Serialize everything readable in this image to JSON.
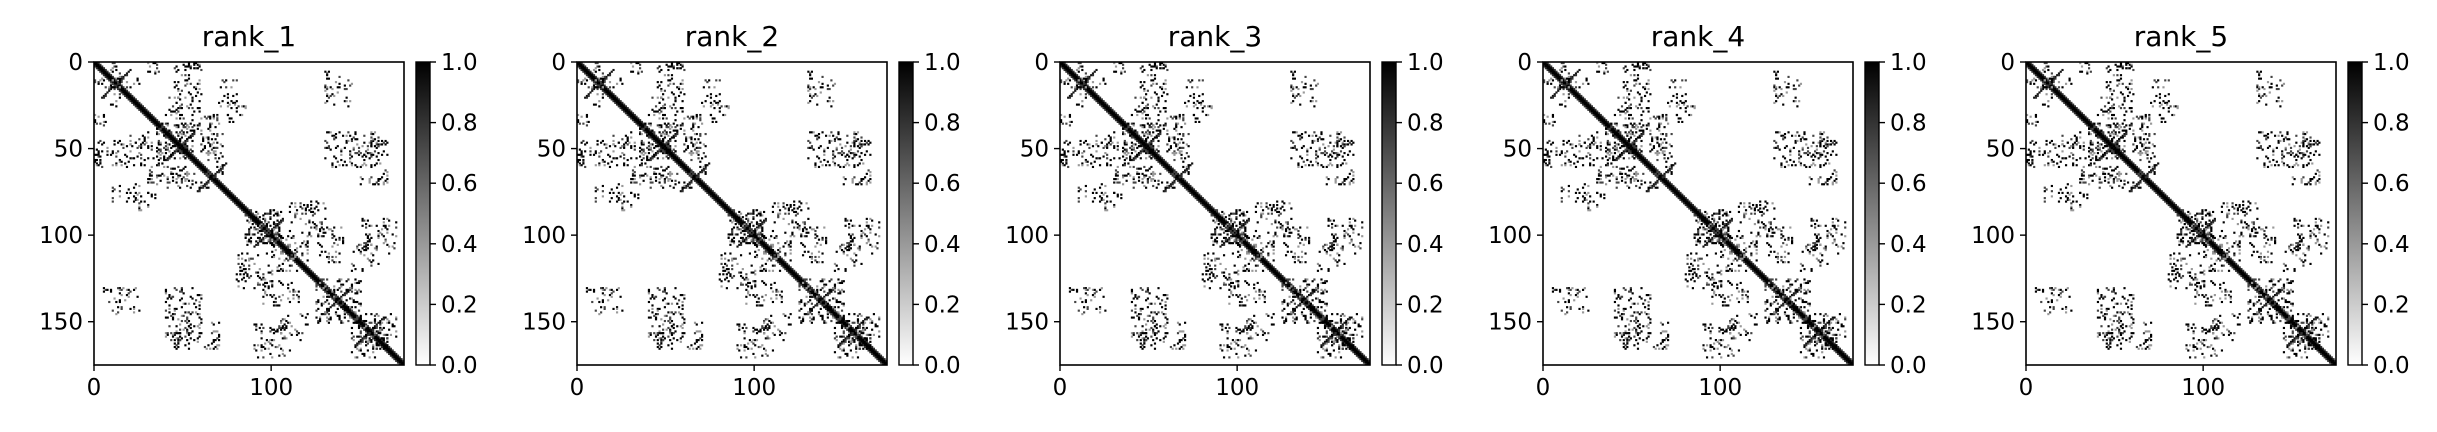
{
  "figure": {
    "background": "#ffffff"
  },
  "chart_data": [
    {
      "type": "heatmap",
      "title": "rank_1",
      "n": 175,
      "xlim": [
        0,
        175
      ],
      "ylim": [
        175,
        0
      ],
      "xticks": [
        0,
        100
      ],
      "yticks": [
        0,
        50,
        100,
        150
      ],
      "colorbar": {
        "range": [
          0.0,
          1.0
        ],
        "ticks": [
          "0.0",
          "0.2",
          "0.4",
          "0.6",
          "0.8",
          "1.0"
        ],
        "cmap": "gray_r"
      },
      "contact_regions": [
        {
          "x": [
            8,
            15
          ],
          "y": [
            0,
            25
          ]
        },
        {
          "x": [
            30,
            36
          ],
          "y": [
            0,
            8
          ]
        },
        {
          "x": [
            40,
            48
          ],
          "y": [
            20,
            32
          ]
        },
        {
          "x": [
            60,
            70
          ],
          "y": [
            30,
            42
          ]
        },
        {
          "x": [
            75,
            85
          ],
          "y": [
            22,
            35
          ]
        },
        {
          "x": [
            0,
            40
          ],
          "y": [
            45,
            60
          ]
        },
        {
          "x": [
            35,
            55
          ],
          "y": [
            35,
            55
          ]
        },
        {
          "x": [
            10,
            30
          ],
          "y": [
            70,
            80
          ]
        },
        {
          "x": [
            40,
            65
          ],
          "y": [
            60,
            72
          ]
        },
        {
          "x": [
            85,
            105
          ],
          "y": [
            85,
            105
          ]
        },
        {
          "x": [
            130,
            145
          ],
          "y": [
            40,
            60
          ]
        },
        {
          "x": [
            150,
            165
          ],
          "y": [
            45,
            70
          ]
        },
        {
          "x": [
            105,
            120
          ],
          "y": [
            100,
            115
          ]
        },
        {
          "x": [
            80,
            100
          ],
          "y": [
            110,
            130
          ]
        },
        {
          "x": [
            95,
            115
          ],
          "y": [
            125,
            140
          ]
        },
        {
          "x": [
            125,
            150
          ],
          "y": [
            125,
            150
          ]
        },
        {
          "x": [
            145,
            160
          ],
          "y": [
            105,
            120
          ]
        },
        {
          "x": [
            150,
            170
          ],
          "y": [
            145,
            165
          ]
        },
        {
          "x": [
            40,
            60
          ],
          "y": [
            145,
            160
          ]
        },
        {
          "x": [
            90,
            110
          ],
          "y": [
            150,
            170
          ]
        },
        {
          "x": [
            5,
            25
          ],
          "y": [
            130,
            145
          ]
        }
      ]
    },
    {
      "type": "heatmap",
      "title": "rank_2",
      "n": 175,
      "xlim": [
        0,
        175
      ],
      "ylim": [
        175,
        0
      ],
      "xticks": [
        0,
        100
      ],
      "yticks": [
        0,
        50,
        100,
        150
      ],
      "colorbar": {
        "range": [
          0.0,
          1.0
        ],
        "ticks": [
          "0.0",
          "0.2",
          "0.4",
          "0.6",
          "0.8",
          "1.0"
        ],
        "cmap": "gray_r"
      },
      "contact_regions": [
        {
          "x": [
            8,
            15
          ],
          "y": [
            0,
            25
          ]
        },
        {
          "x": [
            30,
            36
          ],
          "y": [
            0,
            8
          ]
        },
        {
          "x": [
            40,
            48
          ],
          "y": [
            20,
            32
          ]
        },
        {
          "x": [
            60,
            70
          ],
          "y": [
            30,
            42
          ]
        },
        {
          "x": [
            75,
            85
          ],
          "y": [
            22,
            35
          ]
        },
        {
          "x": [
            0,
            40
          ],
          "y": [
            45,
            60
          ]
        },
        {
          "x": [
            35,
            55
          ],
          "y": [
            35,
            55
          ]
        },
        {
          "x": [
            10,
            30
          ],
          "y": [
            70,
            80
          ]
        },
        {
          "x": [
            40,
            65
          ],
          "y": [
            60,
            72
          ]
        },
        {
          "x": [
            85,
            105
          ],
          "y": [
            85,
            105
          ]
        },
        {
          "x": [
            130,
            145
          ],
          "y": [
            40,
            60
          ]
        },
        {
          "x": [
            150,
            165
          ],
          "y": [
            45,
            70
          ]
        },
        {
          "x": [
            105,
            120
          ],
          "y": [
            100,
            115
          ]
        },
        {
          "x": [
            80,
            100
          ],
          "y": [
            110,
            130
          ]
        },
        {
          "x": [
            95,
            115
          ],
          "y": [
            125,
            140
          ]
        },
        {
          "x": [
            125,
            150
          ],
          "y": [
            125,
            150
          ]
        },
        {
          "x": [
            145,
            160
          ],
          "y": [
            105,
            120
          ]
        },
        {
          "x": [
            150,
            170
          ],
          "y": [
            145,
            165
          ]
        },
        {
          "x": [
            40,
            60
          ],
          "y": [
            145,
            160
          ]
        },
        {
          "x": [
            90,
            110
          ],
          "y": [
            150,
            170
          ]
        },
        {
          "x": [
            5,
            25
          ],
          "y": [
            130,
            145
          ]
        }
      ]
    },
    {
      "type": "heatmap",
      "title": "rank_3",
      "n": 175,
      "xlim": [
        0,
        175
      ],
      "ylim": [
        175,
        0
      ],
      "xticks": [
        0,
        100
      ],
      "yticks": [
        0,
        50,
        100,
        150
      ],
      "colorbar": {
        "range": [
          0.0,
          1.0
        ],
        "ticks": [
          "0.0",
          "0.2",
          "0.4",
          "0.6",
          "0.8",
          "1.0"
        ],
        "cmap": "gray_r"
      },
      "contact_regions": [
        {
          "x": [
            8,
            15
          ],
          "y": [
            0,
            25
          ]
        },
        {
          "x": [
            30,
            36
          ],
          "y": [
            0,
            8
          ]
        },
        {
          "x": [
            40,
            48
          ],
          "y": [
            20,
            32
          ]
        },
        {
          "x": [
            60,
            70
          ],
          "y": [
            30,
            42
          ]
        },
        {
          "x": [
            75,
            85
          ],
          "y": [
            22,
            35
          ]
        },
        {
          "x": [
            0,
            40
          ],
          "y": [
            45,
            60
          ]
        },
        {
          "x": [
            35,
            55
          ],
          "y": [
            35,
            55
          ]
        },
        {
          "x": [
            10,
            30
          ],
          "y": [
            70,
            80
          ]
        },
        {
          "x": [
            40,
            65
          ],
          "y": [
            60,
            72
          ]
        },
        {
          "x": [
            85,
            105
          ],
          "y": [
            85,
            105
          ]
        },
        {
          "x": [
            130,
            145
          ],
          "y": [
            40,
            60
          ]
        },
        {
          "x": [
            150,
            165
          ],
          "y": [
            45,
            70
          ]
        },
        {
          "x": [
            105,
            120
          ],
          "y": [
            100,
            115
          ]
        },
        {
          "x": [
            80,
            100
          ],
          "y": [
            110,
            130
          ]
        },
        {
          "x": [
            95,
            115
          ],
          "y": [
            125,
            140
          ]
        },
        {
          "x": [
            125,
            150
          ],
          "y": [
            125,
            150
          ]
        },
        {
          "x": [
            145,
            160
          ],
          "y": [
            105,
            120
          ]
        },
        {
          "x": [
            150,
            170
          ],
          "y": [
            145,
            165
          ]
        },
        {
          "x": [
            40,
            60
          ],
          "y": [
            145,
            160
          ]
        },
        {
          "x": [
            90,
            110
          ],
          "y": [
            150,
            170
          ]
        },
        {
          "x": [
            5,
            25
          ],
          "y": [
            130,
            145
          ]
        }
      ]
    },
    {
      "type": "heatmap",
      "title": "rank_4",
      "n": 175,
      "xlim": [
        0,
        175
      ],
      "ylim": [
        175,
        0
      ],
      "xticks": [
        0,
        100
      ],
      "yticks": [
        0,
        50,
        100,
        150
      ],
      "colorbar": {
        "range": [
          0.0,
          1.0
        ],
        "ticks": [
          "0.0",
          "0.2",
          "0.4",
          "0.6",
          "0.8",
          "1.0"
        ],
        "cmap": "gray_r"
      },
      "contact_regions": [
        {
          "x": [
            8,
            15
          ],
          "y": [
            0,
            25
          ]
        },
        {
          "x": [
            30,
            36
          ],
          "y": [
            0,
            8
          ]
        },
        {
          "x": [
            40,
            48
          ],
          "y": [
            20,
            32
          ]
        },
        {
          "x": [
            60,
            70
          ],
          "y": [
            30,
            42
          ]
        },
        {
          "x": [
            75,
            85
          ],
          "y": [
            22,
            35
          ]
        },
        {
          "x": [
            0,
            40
          ],
          "y": [
            45,
            60
          ]
        },
        {
          "x": [
            35,
            55
          ],
          "y": [
            35,
            55
          ]
        },
        {
          "x": [
            10,
            30
          ],
          "y": [
            70,
            80
          ]
        },
        {
          "x": [
            40,
            65
          ],
          "y": [
            60,
            72
          ]
        },
        {
          "x": [
            85,
            105
          ],
          "y": [
            85,
            105
          ]
        },
        {
          "x": [
            130,
            145
          ],
          "y": [
            40,
            60
          ]
        },
        {
          "x": [
            150,
            165
          ],
          "y": [
            45,
            70
          ]
        },
        {
          "x": [
            105,
            120
          ],
          "y": [
            100,
            115
          ]
        },
        {
          "x": [
            80,
            100
          ],
          "y": [
            110,
            130
          ]
        },
        {
          "x": [
            95,
            115
          ],
          "y": [
            125,
            140
          ]
        },
        {
          "x": [
            125,
            150
          ],
          "y": [
            125,
            150
          ]
        },
        {
          "x": [
            145,
            160
          ],
          "y": [
            105,
            120
          ]
        },
        {
          "x": [
            150,
            170
          ],
          "y": [
            145,
            165
          ]
        },
        {
          "x": [
            40,
            60
          ],
          "y": [
            145,
            160
          ]
        },
        {
          "x": [
            90,
            110
          ],
          "y": [
            150,
            170
          ]
        },
        {
          "x": [
            5,
            25
          ],
          "y": [
            130,
            145
          ]
        }
      ]
    },
    {
      "type": "heatmap",
      "title": "rank_5",
      "n": 175,
      "xlim": [
        0,
        175
      ],
      "ylim": [
        175,
        0
      ],
      "xticks": [
        0,
        100
      ],
      "yticks": [
        0,
        50,
        100,
        150
      ],
      "colorbar": {
        "range": [
          0.0,
          1.0
        ],
        "ticks": [
          "0.0",
          "0.2",
          "0.4",
          "0.6",
          "0.8",
          "1.0"
        ],
        "cmap": "gray_r"
      },
      "contact_regions": [
        {
          "x": [
            8,
            15
          ],
          "y": [
            0,
            25
          ]
        },
        {
          "x": [
            30,
            36
          ],
          "y": [
            0,
            8
          ]
        },
        {
          "x": [
            40,
            48
          ],
          "y": [
            20,
            32
          ]
        },
        {
          "x": [
            60,
            70
          ],
          "y": [
            30,
            42
          ]
        },
        {
          "x": [
            75,
            85
          ],
          "y": [
            22,
            35
          ]
        },
        {
          "x": [
            0,
            40
          ],
          "y": [
            45,
            60
          ]
        },
        {
          "x": [
            35,
            55
          ],
          "y": [
            35,
            55
          ]
        },
        {
          "x": [
            10,
            30
          ],
          "y": [
            70,
            80
          ]
        },
        {
          "x": [
            40,
            65
          ],
          "y": [
            60,
            72
          ]
        },
        {
          "x": [
            85,
            105
          ],
          "y": [
            85,
            105
          ]
        },
        {
          "x": [
            130,
            145
          ],
          "y": [
            40,
            60
          ]
        },
        {
          "x": [
            150,
            165
          ],
          "y": [
            45,
            70
          ]
        },
        {
          "x": [
            105,
            120
          ],
          "y": [
            100,
            115
          ]
        },
        {
          "x": [
            80,
            100
          ],
          "y": [
            110,
            130
          ]
        },
        {
          "x": [
            95,
            115
          ],
          "y": [
            125,
            140
          ]
        },
        {
          "x": [
            125,
            150
          ],
          "y": [
            125,
            150
          ]
        },
        {
          "x": [
            145,
            160
          ],
          "y": [
            105,
            120
          ]
        },
        {
          "x": [
            150,
            170
          ],
          "y": [
            145,
            165
          ]
        },
        {
          "x": [
            40,
            60
          ],
          "y": [
            145,
            160
          ]
        },
        {
          "x": [
            90,
            110
          ],
          "y": [
            150,
            170
          ]
        },
        {
          "x": [
            5,
            25
          ],
          "y": [
            130,
            145
          ]
        }
      ]
    }
  ]
}
